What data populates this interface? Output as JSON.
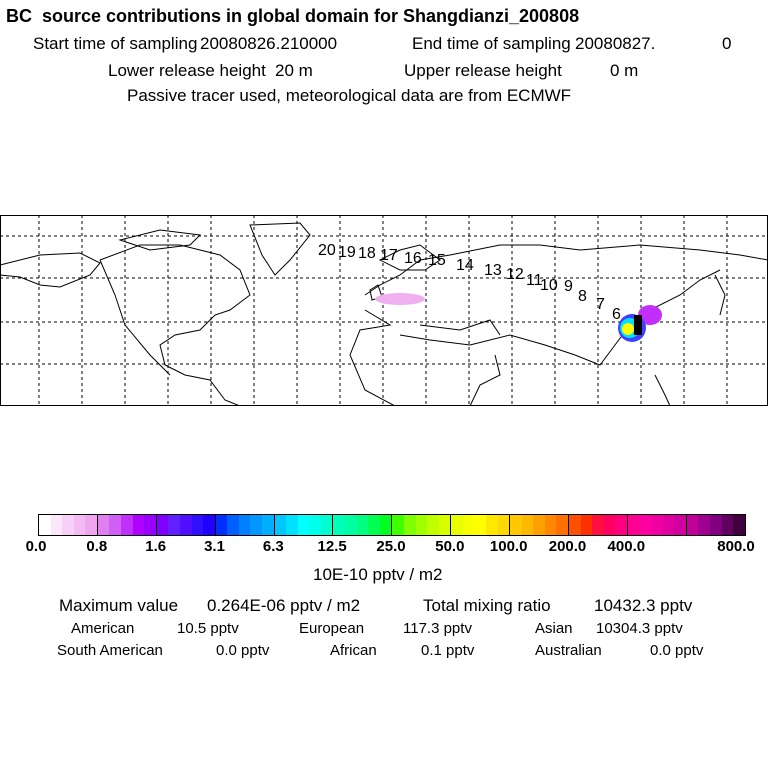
{
  "title": "BC  source contributions in global domain for Shangdianzi_200808",
  "sampling": {
    "start_label": "Start time of sampling",
    "start_value": "20080826.210000",
    "end_label": "End time of sampling",
    "end_value": "20080827.",
    "end_extra": "0"
  },
  "release": {
    "lower_label": "Lower release height",
    "lower_value": "20 m",
    "upper_label": "Upper release height",
    "upper_value": "0 m"
  },
  "note": "Passive tracer used, meteorological data are from ECMWF",
  "map": {
    "trajectory_labels": [
      "20",
      "19",
      "18",
      "17",
      "16",
      "15",
      "14",
      "13",
      "12",
      "11",
      "10",
      "9",
      "8",
      "7",
      "6"
    ],
    "plume_colors": [
      "#ff80ff",
      "#c000ff",
      "#4040ff",
      "#00c0ff",
      "#00ff80",
      "#ffff00",
      "#000000"
    ]
  },
  "colorbar": {
    "unit": "10E-10 pptv / m2",
    "ticks": [
      "0.0",
      "0.8",
      "1.6",
      "3.1",
      "6.3",
      "12.5",
      "25.0",
      "50.0",
      "100.0",
      "200.0",
      "400.0",
      "800.0"
    ],
    "colors": [
      "#ffffff",
      "#fbe6fb",
      "#f7d0f7",
      "#f3bbf3",
      "#efa6ef",
      "#e080f0",
      "#d060f5",
      "#c030fa",
      "#b000ff",
      "#9a00ff",
      "#8000ff",
      "#6020ff",
      "#5010ff",
      "#3010ff",
      "#2000ff",
      "#0030ff",
      "#0060ff",
      "#0080ff",
      "#0098ff",
      "#00b0ff",
      "#00c8ff",
      "#00e0ff",
      "#00ffff",
      "#00ffe8",
      "#00ffd0",
      "#00ffb8",
      "#00ffa0",
      "#00ff80",
      "#00ff50",
      "#00ff20",
      "#40ff00",
      "#80ff00",
      "#a0ff00",
      "#c0ff00",
      "#d8ff00",
      "#e8ff00",
      "#f8ff00",
      "#ffff00",
      "#ffe800",
      "#ffd800",
      "#ffc800",
      "#ffb800",
      "#ffa000",
      "#ff8800",
      "#ff7000",
      "#ff5000",
      "#ff3000",
      "#ff1040",
      "#ff0060",
      "#ff0080",
      "#ff0090",
      "#ff00a0",
      "#f000a0",
      "#e000a0",
      "#d000a0",
      "#c00098",
      "#a00090",
      "#800080",
      "#600060",
      "#400040"
    ]
  },
  "stats": {
    "max_label": "Maximum value",
    "max_value": "0.264E-06 pptv / m2",
    "total_label": "Total mixing ratio",
    "total_value": "10432.3 pptv",
    "regions": [
      {
        "name": "American",
        "value": "10.5 pptv"
      },
      {
        "name": "European",
        "value": "117.3 pptv"
      },
      {
        "name": "Asian",
        "value": "10304.3 pptv"
      },
      {
        "name": "South American",
        "value": "0.0 pptv"
      },
      {
        "name": "African",
        "value": "0.1 pptv"
      },
      {
        "name": "Australian",
        "value": "0.0 pptv"
      }
    ]
  }
}
